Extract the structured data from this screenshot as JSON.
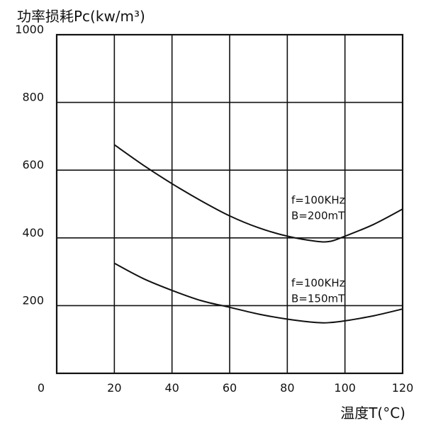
{
  "chart_data": {
    "type": "line",
    "ylabel": "功率损耗Pc(kw/m³)",
    "xlabel": "温度T(°C)",
    "xlim": [
      0,
      120
    ],
    "ylim": [
      0,
      1000
    ],
    "x_ticks": [
      "0",
      "20",
      "40",
      "60",
      "80",
      "100",
      "120"
    ],
    "y_ticks": [
      "0",
      "200",
      "400",
      "600",
      "800",
      "1000"
    ],
    "grid": true,
    "series": [
      {
        "label_lines": [
          "f=100KHz",
          "B=200mT"
        ],
        "x": [
          20,
          30,
          40,
          50,
          60,
          70,
          80,
          90,
          95,
          100,
          110,
          120
        ],
        "y": [
          675,
          615,
          560,
          510,
          465,
          430,
          405,
          390,
          390,
          405,
          440,
          485
        ]
      },
      {
        "label_lines": [
          "f=100KHz",
          "B=150mT"
        ],
        "x": [
          20,
          30,
          40,
          50,
          60,
          70,
          80,
          90,
          95,
          100,
          110,
          120
        ],
        "y": [
          325,
          280,
          245,
          215,
          195,
          175,
          160,
          150,
          150,
          155,
          170,
          190
        ]
      }
    ]
  }
}
